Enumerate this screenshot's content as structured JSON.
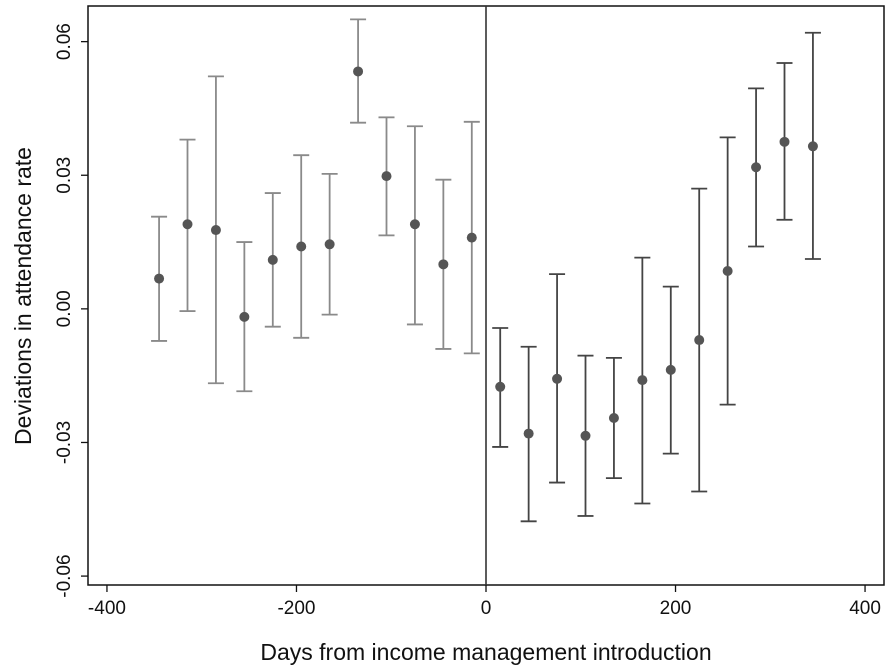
{
  "chart_data": {
    "type": "scatter",
    "title": "",
    "xlabel": "Days from income management introduction",
    "ylabel": "Deviations in attendance rate",
    "xlim": [
      -420,
      420
    ],
    "ylim": [
      -0.062,
      0.068
    ],
    "x_ticks": [
      -400,
      -200,
      0,
      200,
      400
    ],
    "x_tick_labels": [
      "-400",
      "-200",
      "0",
      "200",
      "400"
    ],
    "y_ticks": [
      -0.06,
      -0.03,
      0.0,
      0.03,
      0.06
    ],
    "y_tick_labels": [
      "-0.06",
      "-0.03",
      "0.00",
      "0.03",
      "0.06"
    ],
    "grid": false,
    "legend": "none",
    "vertical_reference_line": 0,
    "colors": {
      "pre": "#8a8a8a",
      "post": "#444444",
      "marker": "#555555",
      "axis": "#111111"
    },
    "series": [
      {
        "period": "pre",
        "points": [
          {
            "x": -345,
            "y": 0.0068,
            "lo": -0.0072,
            "hi": 0.0207
          },
          {
            "x": -315,
            "y": 0.019,
            "lo": -0.0005,
            "hi": 0.038
          },
          {
            "x": -285,
            "y": 0.0177,
            "lo": -0.0167,
            "hi": 0.0522
          },
          {
            "x": -255,
            "y": -0.0018,
            "lo": -0.0185,
            "hi": 0.015
          },
          {
            "x": -225,
            "y": 0.011,
            "lo": -0.004,
            "hi": 0.026
          },
          {
            "x": -195,
            "y": 0.014,
            "lo": -0.0065,
            "hi": 0.0345
          },
          {
            "x": -165,
            "y": 0.0145,
            "lo": -0.0013,
            "hi": 0.0303
          },
          {
            "x": -135,
            "y": 0.0533,
            "lo": 0.0418,
            "hi": 0.065
          },
          {
            "x": -105,
            "y": 0.0298,
            "lo": 0.0165,
            "hi": 0.043
          },
          {
            "x": -75,
            "y": 0.019,
            "lo": -0.0035,
            "hi": 0.041
          },
          {
            "x": -45,
            "y": 0.01,
            "lo": -0.009,
            "hi": 0.029
          },
          {
            "x": -15,
            "y": 0.016,
            "lo": -0.01,
            "hi": 0.042
          }
        ]
      },
      {
        "period": "post",
        "points": [
          {
            "x": 15,
            "y": -0.0175,
            "lo": -0.031,
            "hi": -0.0043
          },
          {
            "x": 45,
            "y": -0.028,
            "lo": -0.0477,
            "hi": -0.0085
          },
          {
            "x": 75,
            "y": -0.0157,
            "lo": -0.039,
            "hi": 0.0078
          },
          {
            "x": 105,
            "y": -0.0285,
            "lo": -0.0465,
            "hi": -0.0105
          },
          {
            "x": 135,
            "y": -0.0245,
            "lo": -0.038,
            "hi": -0.011
          },
          {
            "x": 165,
            "y": -0.016,
            "lo": -0.0437,
            "hi": 0.0115
          },
          {
            "x": 195,
            "y": -0.0137,
            "lo": -0.0325,
            "hi": 0.005
          },
          {
            "x": 225,
            "y": -0.007,
            "lo": -0.041,
            "hi": 0.027
          },
          {
            "x": 255,
            "y": 0.0085,
            "lo": -0.0215,
            "hi": 0.0385
          },
          {
            "x": 285,
            "y": 0.0318,
            "lo": 0.014,
            "hi": 0.0495
          },
          {
            "x": 315,
            "y": 0.0375,
            "lo": 0.02,
            "hi": 0.0552
          },
          {
            "x": 345,
            "y": 0.0365,
            "lo": 0.0112,
            "hi": 0.062
          }
        ]
      }
    ]
  }
}
